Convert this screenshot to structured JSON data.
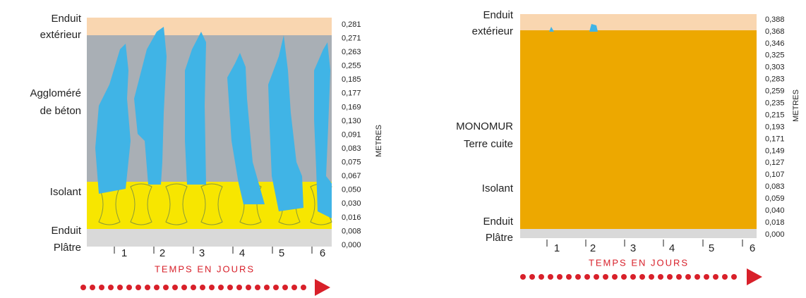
{
  "panels": [
    {
      "layer_labels": [
        [
          "Enduit",
          "extérieur"
        ],
        [
          "Aggloméré",
          "de béton"
        ],
        [
          "Isolant"
        ],
        [
          "Enduit"
        ],
        [
          "Plâtre"
        ]
      ],
      "scale_labels": [
        "0,281",
        "0,271",
        "0,263",
        "0,255",
        "0,185",
        "0,177",
        "0,169",
        "0,130",
        "0,091",
        "0,083",
        "0,075",
        "0,067",
        "0,050",
        "0,030",
        "0,016",
        "0,008",
        "0,000"
      ],
      "scale_unit": "METRES",
      "day_labels": [
        "1",
        "2",
        "3",
        "4",
        "5",
        "6"
      ],
      "time_title": "TEMPS EN JOURS"
    },
    {
      "layer_labels": [
        [
          "Enduit",
          "extérieur"
        ],
        [
          "MONOMUR",
          "Terre cuite"
        ],
        [
          "Isolant"
        ],
        [
          "Enduit"
        ],
        [
          "Plâtre"
        ]
      ],
      "scale_labels": [
        "0,388",
        "0,368",
        "0,346",
        "0,325",
        "0,303",
        "0,283",
        "0,259",
        "0,235",
        "0,215",
        "0,193",
        "0,171",
        "0,149",
        "0,127",
        "0,107",
        "0,083",
        "0,059",
        "0,040",
        "0,018",
        "0,000"
      ],
      "scale_unit": "METRES",
      "day_labels": [
        "1",
        "2",
        "3",
        "4",
        "5",
        "6"
      ],
      "time_title": "TEMPS EN JOURS"
    }
  ]
}
